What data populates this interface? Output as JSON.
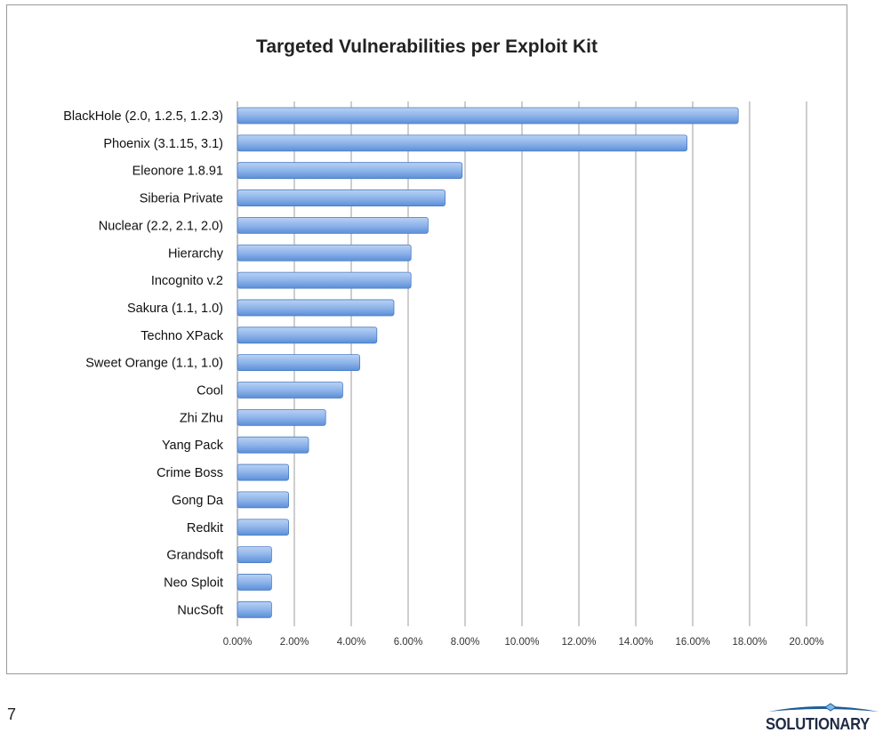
{
  "chart_data": {
    "type": "bar",
    "orientation": "horizontal",
    "title": "Targeted Vulnerabilities per Exploit Kit",
    "xlabel": "",
    "ylabel": "",
    "categories": [
      "BlackHole (2.0, 1.2.5, 1.2.3)",
      "Phoenix (3.1.15, 3.1)",
      "Eleonore 1.8.91",
      "Siberia Private",
      "Nuclear (2.2, 2.1, 2.0)",
      "Hierarchy",
      "Incognito v.2",
      "Sakura (1.1, 1.0)",
      "Techno XPack",
      "Sweet Orange (1.1, 1.0)",
      "Cool",
      "Zhi Zhu",
      "Yang Pack",
      "Crime Boss",
      "Gong Da",
      "Redkit",
      "Grandsoft",
      "Neo Sploit",
      "NucSoft"
    ],
    "values": [
      17.6,
      15.8,
      7.9,
      7.3,
      6.7,
      6.1,
      6.1,
      5.5,
      4.9,
      4.3,
      3.7,
      3.1,
      2.5,
      1.8,
      1.8,
      1.8,
      1.2,
      1.2,
      1.2
    ],
    "value_unit": "%",
    "xlim": [
      0,
      20
    ],
    "xticks": [
      "0.00%",
      "2.00%",
      "4.00%",
      "6.00%",
      "8.00%",
      "10.00%",
      "12.00%",
      "14.00%",
      "16.00%",
      "18.00%",
      "20.00%"
    ],
    "grid": true,
    "legend": "none",
    "colors": {
      "bar_light": "#b9d2f3",
      "bar_dark": "#5b8fd8",
      "bar_edge": "#4a7cc4",
      "grid": "#9e9e9e"
    }
  },
  "footer": {
    "page_number": "7",
    "brand": "SOLUTIONARY"
  }
}
